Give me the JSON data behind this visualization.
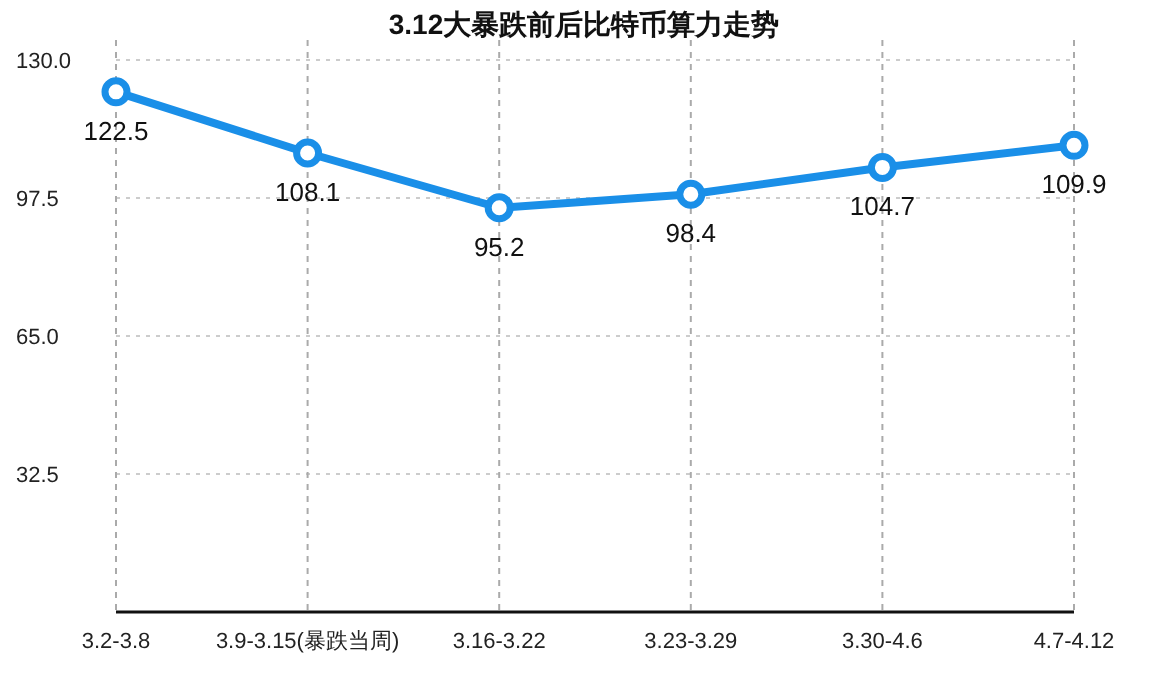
{
  "chart_data": {
    "type": "line",
    "title": "3.12大暴跌前后比特币算力走势",
    "categories": [
      "3.2-3.8",
      "3.9-3.15(暴跌当周)",
      "3.16-3.22",
      "3.23-3.29",
      "3.30-4.6",
      "4.7-4.12"
    ],
    "series": [
      {
        "color": "#1a8fe8",
        "values": [
          122.5,
          108.1,
          95.2,
          98.4,
          104.7,
          109.9
        ]
      }
    ],
    "ylim": [
      0,
      130
    ],
    "yticks": [
      {
        "value": 0,
        "label": null
      },
      {
        "value": 32.5,
        "label": "32.5"
      },
      {
        "value": 65,
        "label": "65.0"
      },
      {
        "value": 97.5,
        "label": "97.5"
      },
      {
        "value": 130,
        "label": "130.0"
      }
    ],
    "grid": true,
    "marker": "circle",
    "line_style": "solid",
    "data_labels": true
  }
}
